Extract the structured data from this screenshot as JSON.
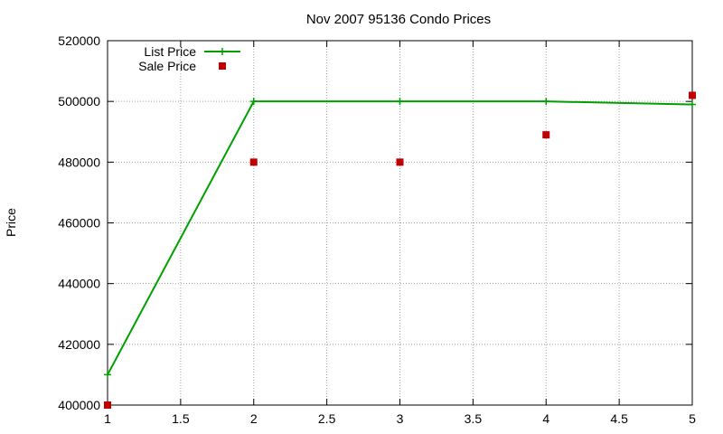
{
  "chart_data": {
    "type": "line",
    "title": "Nov 2007 95136 Condo Prices",
    "xlabel": "",
    "ylabel": "Price",
    "xlim": [
      1,
      5
    ],
    "ylim": [
      400000,
      520000
    ],
    "x_ticks": [
      1,
      1.5,
      2,
      2.5,
      3,
      3.5,
      4,
      4.5,
      5
    ],
    "x_tick_labels": [
      "1",
      "1.5",
      "2",
      "2.5",
      "3",
      "3.5",
      "4",
      "4.5",
      "5"
    ],
    "y_ticks": [
      400000,
      420000,
      440000,
      460000,
      480000,
      500000,
      520000
    ],
    "y_tick_labels": [
      "400000",
      "420000",
      "440000",
      "460000",
      "480000",
      "500000",
      "520000"
    ],
    "grid": true,
    "legend_position": "top-left",
    "series": [
      {
        "name": "List Price",
        "kind": "line-with-plus-markers",
        "color": "#00a000",
        "x": [
          1,
          2,
          3,
          4,
          5
        ],
        "y": [
          410000,
          500000,
          500000,
          500000,
          499000
        ]
      },
      {
        "name": "Sale Price",
        "kind": "square-markers",
        "color": "#c00000",
        "x": [
          1,
          2,
          3,
          4,
          5
        ],
        "y": [
          400000,
          480000,
          480000,
          489000,
          502000
        ]
      }
    ]
  }
}
